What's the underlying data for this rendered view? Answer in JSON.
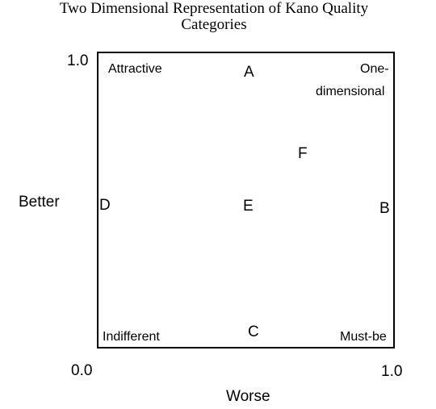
{
  "title": {
    "line1": "Two Dimensional Representation of Kano Quality",
    "line2": "Categories"
  },
  "axes": {
    "y_label": "Better",
    "x_label": "Worse",
    "y_top_tick": "1.0",
    "origin_tick": "0.0",
    "x_right_tick": "1.0"
  },
  "regions": {
    "attractive": "Attractive",
    "one_dimensional_line1": "One-",
    "one_dimensional_line2": "dimensional",
    "indifferent": "Indifferent",
    "must_be": "Must-be"
  },
  "points": {
    "a": "A",
    "b": "B",
    "c": "C",
    "d": "D",
    "e": "E",
    "f": "F"
  }
}
